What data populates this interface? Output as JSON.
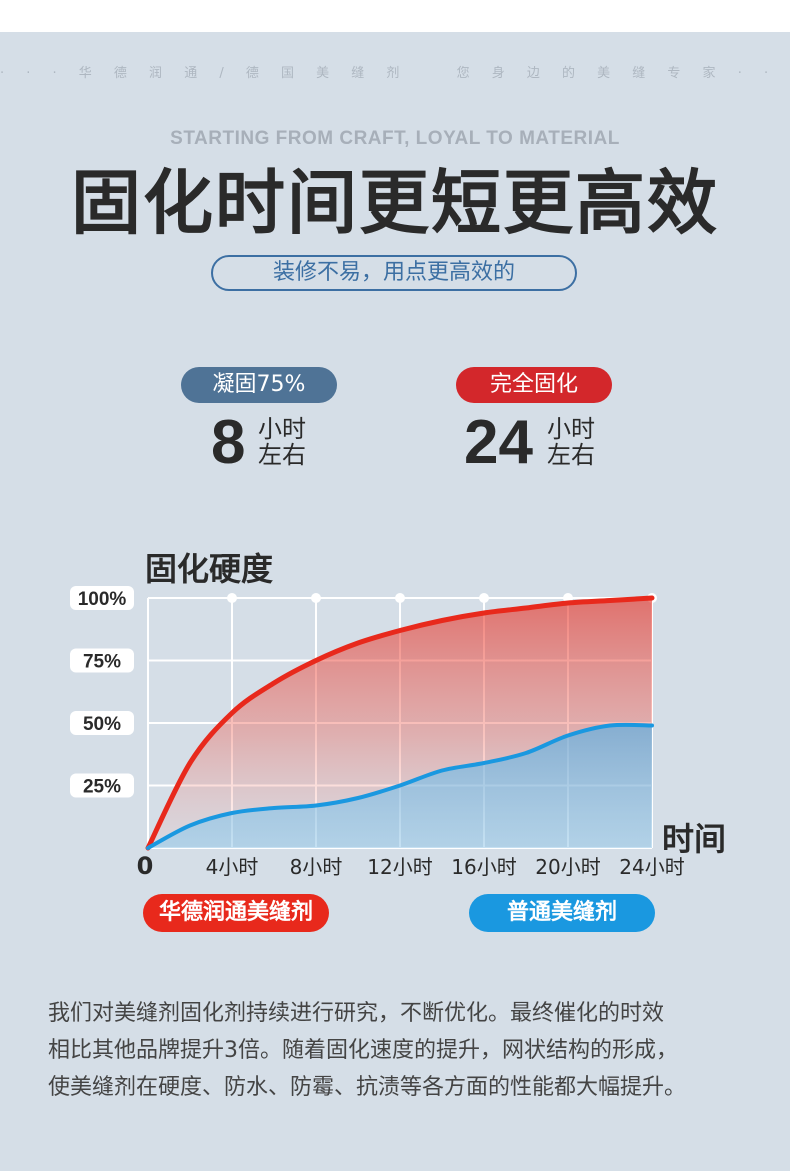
{
  "header": {
    "tagline": "· · · 华 德 润 通 / 德 国 美 缝 剂 　 您 身 边 的 美 缝 专 家 · · ·",
    "subtitle_en": "STARTING FROM CRAFT, LOYAL TO MATERIAL",
    "title": "固化时间更短更高效",
    "slogan": "装修不易，用点更高效的"
  },
  "stats": [
    {
      "badge": "凝固75%",
      "number": "8",
      "unit_line1": "小时",
      "unit_line2": "左右",
      "color": "#4f7396"
    },
    {
      "badge": "完全固化",
      "number": "24",
      "unit_line1": "小时",
      "unit_line2": "左右",
      "color": "#d3272b"
    }
  ],
  "chart_data": {
    "type": "area",
    "title": "固化硬度",
    "xlabel": "时间",
    "x_ticks": [
      "0",
      "4小时",
      "8小时",
      "12小时",
      "16小时",
      "20小时",
      "24小时"
    ],
    "y_ticks": [
      "100%",
      "75%",
      "50%",
      "25%"
    ],
    "xlim": [
      0,
      24
    ],
    "ylim": [
      0,
      100
    ],
    "grid": true,
    "series": [
      {
        "name": "华德润通美缝剂",
        "color": "#e8291c",
        "x": [
          0,
          2,
          4,
          6,
          8,
          10,
          12,
          14,
          16,
          18,
          20,
          22,
          24
        ],
        "y": [
          0,
          34,
          54,
          66,
          75,
          82,
          87,
          91,
          94,
          96,
          98,
          99,
          100
        ]
      },
      {
        "name": "普通美缝剂",
        "color": "#1a98e0",
        "x": [
          0,
          2,
          4,
          6,
          8,
          10,
          12,
          14,
          16,
          18,
          20,
          22,
          24
        ],
        "y": [
          0,
          9,
          14,
          16,
          17,
          20,
          25,
          31,
          34,
          38,
          45,
          49,
          49
        ]
      }
    ]
  },
  "body": {
    "line1": "我们对美缝剂固化剂持续进行研究，不断优化。最终催化的时效",
    "line2": "相比其他品牌提升3倍。随着固化速度的提升，网状结构的形成，",
    "line3": "使美缝剂在硬度、防水、防霉、抗渍等各方面的性能都大幅提升。"
  }
}
